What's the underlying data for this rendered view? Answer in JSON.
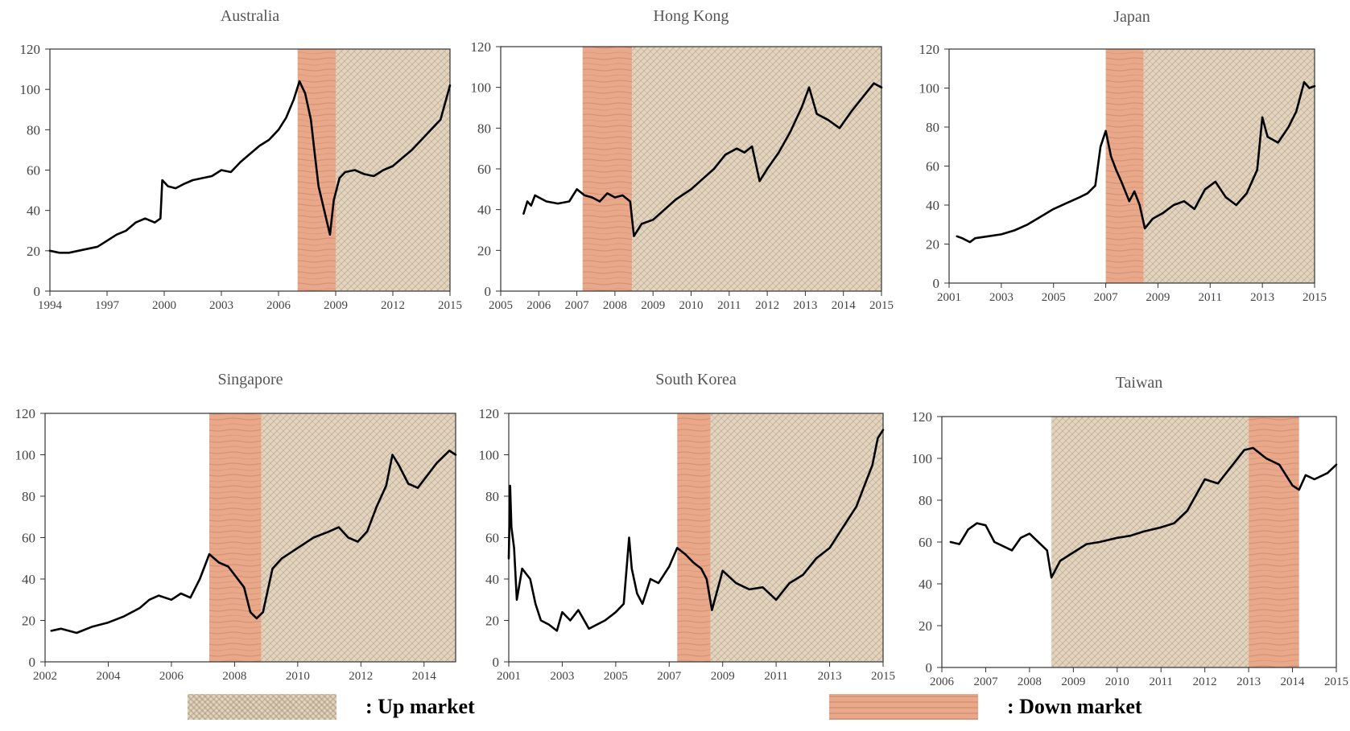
{
  "colors": {
    "line": "#000000",
    "up_fill": "#e2d4bf",
    "up_weave": "#a08a6a",
    "down_fill": "#e9a88a",
    "down_grain": "#c07e62"
  },
  "legend": {
    "up_label": ": Up market",
    "down_label": ": Down market"
  },
  "chart_data": [
    {
      "type": "line",
      "title": "Australia",
      "ylim": [
        0,
        120
      ],
      "yticks": [
        0,
        20,
        40,
        60,
        80,
        100,
        120
      ],
      "xlim": [
        1994,
        2015
      ],
      "xticks": [
        1994,
        1997,
        2000,
        2003,
        2006,
        2009,
        2012,
        2015
      ],
      "regions": [
        {
          "kind": "down",
          "from": 2007,
          "to": 2009
        },
        {
          "kind": "up",
          "from": 2009,
          "to": 2015
        }
      ],
      "series": [
        {
          "x": [
            1994,
            1994.5,
            1995,
            1995.5,
            1996,
            1996.5,
            1997,
            1997.5,
            1998,
            1998.5,
            1999,
            1999.5,
            1999.8,
            1999.9,
            2000.2,
            2000.6,
            2001,
            2001.5,
            2002,
            2002.5,
            2003,
            2003.5,
            2004,
            2004.5,
            2005,
            2005.5,
            2006,
            2006.4,
            2006.8,
            2007.1,
            2007.4,
            2007.7,
            2007.9,
            2008.1,
            2008.4,
            2008.7,
            2008.9,
            2009.2,
            2009.5,
            2010,
            2010.5,
            2011,
            2011.5,
            2012,
            2012.5,
            2013,
            2013.5,
            2014,
            2014.5,
            2015
          ],
          "y": [
            20,
            19,
            19,
            20,
            21,
            22,
            25,
            28,
            30,
            34,
            36,
            34,
            36,
            55,
            52,
            51,
            53,
            55,
            56,
            57,
            60,
            59,
            64,
            68,
            72,
            75,
            80,
            86,
            95,
            104,
            98,
            85,
            68,
            52,
            40,
            28,
            45,
            56,
            59,
            60,
            58,
            57,
            60,
            62,
            66,
            70,
            75,
            80,
            85,
            102
          ]
        }
      ]
    },
    {
      "type": "line",
      "title": "Hong Kong",
      "ylim": [
        0,
        120
      ],
      "yticks": [
        0,
        20,
        40,
        60,
        80,
        100,
        120
      ],
      "xlim": [
        2005,
        2015
      ],
      "xticks": [
        2005,
        2006,
        2007,
        2008,
        2009,
        2010,
        2011,
        2012,
        2013,
        2014,
        2015
      ],
      "regions": [
        {
          "kind": "down",
          "from": 2007.15,
          "to": 2008.45
        },
        {
          "kind": "up",
          "from": 2008.45,
          "to": 2015
        }
      ],
      "series": [
        {
          "x": [
            2005.6,
            2005.7,
            2005.8,
            2005.9,
            2006,
            2006.2,
            2006.5,
            2006.8,
            2007,
            2007.2,
            2007.4,
            2007.6,
            2007.8,
            2008,
            2008.2,
            2008.4,
            2008.5,
            2008.7,
            2009,
            2009.3,
            2009.6,
            2010,
            2010.3,
            2010.6,
            2010.9,
            2011.2,
            2011.4,
            2011.6,
            2011.8,
            2012,
            2012.3,
            2012.6,
            2012.9,
            2013.1,
            2013.3,
            2013.6,
            2013.9,
            2014.2,
            2014.5,
            2014.8,
            2015
          ],
          "y": [
            38,
            44,
            42,
            47,
            46,
            44,
            43,
            44,
            50,
            47,
            46,
            44,
            48,
            46,
            47,
            44,
            27,
            33,
            35,
            40,
            45,
            50,
            55,
            60,
            67,
            70,
            68,
            71,
            54,
            60,
            68,
            78,
            90,
            100,
            87,
            84,
            80,
            88,
            95,
            102,
            100
          ]
        }
      ]
    },
    {
      "type": "line",
      "title": "Japan",
      "ylim": [
        0,
        120
      ],
      "yticks": [
        0,
        20,
        40,
        60,
        80,
        100,
        120
      ],
      "xlim": [
        2001,
        2015
      ],
      "xticks": [
        2001,
        2003,
        2005,
        2007,
        2009,
        2011,
        2013,
        2015
      ],
      "regions": [
        {
          "kind": "down",
          "from": 2007,
          "to": 2008.45
        },
        {
          "kind": "up",
          "from": 2008.45,
          "to": 2015
        }
      ],
      "series": [
        {
          "x": [
            2001.3,
            2001.5,
            2001.8,
            2002,
            2002.5,
            2003,
            2003.5,
            2004,
            2004.5,
            2005,
            2005.5,
            2006,
            2006.3,
            2006.6,
            2006.8,
            2007,
            2007.2,
            2007.4,
            2007.6,
            2007.9,
            2008.1,
            2008.3,
            2008.5,
            2008.8,
            2009.2,
            2009.6,
            2010,
            2010.4,
            2010.8,
            2011.2,
            2011.6,
            2012,
            2012.4,
            2012.8,
            2013,
            2013.2,
            2013.6,
            2014,
            2014.3,
            2014.6,
            2014.8,
            2015
          ],
          "y": [
            24,
            23,
            21,
            23,
            24,
            25,
            27,
            30,
            34,
            38,
            41,
            44,
            46,
            50,
            70,
            78,
            65,
            58,
            52,
            42,
            47,
            40,
            28,
            33,
            36,
            40,
            42,
            38,
            48,
            52,
            44,
            40,
            46,
            58,
            85,
            75,
            72,
            80,
            88,
            103,
            100,
            101
          ]
        }
      ]
    },
    {
      "type": "line",
      "title": "Singapore",
      "ylim": [
        0,
        120
      ],
      "yticks": [
        0,
        20,
        40,
        60,
        80,
        100,
        120
      ],
      "xlim": [
        2002,
        2015
      ],
      "xticks": [
        2002,
        2004,
        2006,
        2008,
        2010,
        2012,
        2014
      ],
      "regions": [
        {
          "kind": "down",
          "from": 2007.2,
          "to": 2008.85
        },
        {
          "kind": "up",
          "from": 2008.85,
          "to": 2015
        }
      ],
      "series": [
        {
          "x": [
            2002.2,
            2002.5,
            2003,
            2003.5,
            2004,
            2004.5,
            2005,
            2005.3,
            2005.6,
            2006,
            2006.3,
            2006.6,
            2006.9,
            2007.2,
            2007.5,
            2007.8,
            2008,
            2008.3,
            2008.5,
            2008.7,
            2008.9,
            2009.2,
            2009.5,
            2010,
            2010.5,
            2011,
            2011.3,
            2011.6,
            2011.9,
            2012.2,
            2012.5,
            2012.8,
            2013,
            2013.2,
            2013.5,
            2013.8,
            2014.1,
            2014.4,
            2014.8,
            2015
          ],
          "y": [
            15,
            16,
            14,
            17,
            19,
            22,
            26,
            30,
            32,
            30,
            33,
            31,
            40,
            52,
            48,
            46,
            42,
            36,
            24,
            21,
            24,
            45,
            50,
            55,
            60,
            63,
            65,
            60,
            58,
            63,
            75,
            85,
            100,
            95,
            86,
            84,
            90,
            96,
            102,
            100
          ]
        }
      ]
    },
    {
      "type": "line",
      "title": "South Korea",
      "ylim": [
        0,
        120
      ],
      "yticks": [
        0,
        20,
        40,
        60,
        80,
        100,
        120
      ],
      "xlim": [
        2001,
        2015
      ],
      "xticks": [
        2001,
        2003,
        2005,
        2007,
        2009,
        2011,
        2013,
        2015
      ],
      "regions": [
        {
          "kind": "down",
          "from": 2007.3,
          "to": 2008.55
        },
        {
          "kind": "up",
          "from": 2008.55,
          "to": 2015
        }
      ],
      "series": [
        {
          "x": [
            2001,
            2001.05,
            2001.1,
            2001.2,
            2001.3,
            2001.5,
            2001.8,
            2002,
            2002.2,
            2002.5,
            2002.8,
            2003,
            2003.3,
            2003.6,
            2004,
            2004.3,
            2004.6,
            2005,
            2005.3,
            2005.5,
            2005.6,
            2005.8,
            2006,
            2006.3,
            2006.6,
            2007,
            2007.3,
            2007.6,
            2007.9,
            2008.2,
            2008.4,
            2008.6,
            2009,
            2009.5,
            2010,
            2010.5,
            2011,
            2011.5,
            2012,
            2012.5,
            2013,
            2013.5,
            2014,
            2014.3,
            2014.6,
            2014.8,
            2015
          ],
          "y": [
            50,
            85,
            65,
            55,
            30,
            45,
            40,
            28,
            20,
            18,
            15,
            24,
            20,
            25,
            16,
            18,
            20,
            24,
            28,
            60,
            45,
            33,
            28,
            40,
            38,
            46,
            55,
            52,
            48,
            45,
            40,
            25,
            44,
            38,
            35,
            36,
            30,
            38,
            42,
            50,
            55,
            65,
            75,
            85,
            95,
            108,
            112
          ]
        }
      ]
    },
    {
      "type": "line",
      "title": "Taiwan",
      "ylim": [
        0,
        120
      ],
      "yticks": [
        0,
        20,
        40,
        60,
        80,
        100,
        120
      ],
      "xlim": [
        2006,
        2015
      ],
      "xticks": [
        2006,
        2007,
        2008,
        2009,
        2010,
        2011,
        2012,
        2013,
        2014,
        2015
      ],
      "regions": [
        {
          "kind": "up",
          "from": 2008.5,
          "to": 2013
        },
        {
          "kind": "down",
          "from": 2013,
          "to": 2014.15
        }
      ],
      "series": [
        {
          "x": [
            2006.2,
            2006.4,
            2006.6,
            2006.8,
            2007,
            2007.2,
            2007.4,
            2007.6,
            2007.8,
            2008,
            2008.2,
            2008.4,
            2008.5,
            2008.7,
            2009,
            2009.3,
            2009.6,
            2010,
            2010.3,
            2010.6,
            2011,
            2011.3,
            2011.6,
            2012,
            2012.3,
            2012.6,
            2012.9,
            2013.1,
            2013.4,
            2013.7,
            2014,
            2014.15,
            2014.3,
            2014.5,
            2014.8,
            2015
          ],
          "y": [
            60,
            59,
            66,
            69,
            68,
            60,
            58,
            56,
            62,
            64,
            60,
            56,
            43,
            51,
            55,
            59,
            60,
            62,
            63,
            65,
            67,
            69,
            75,
            90,
            88,
            96,
            104,
            105,
            100,
            97,
            87,
            85,
            92,
            90,
            93,
            97
          ]
        }
      ]
    }
  ]
}
